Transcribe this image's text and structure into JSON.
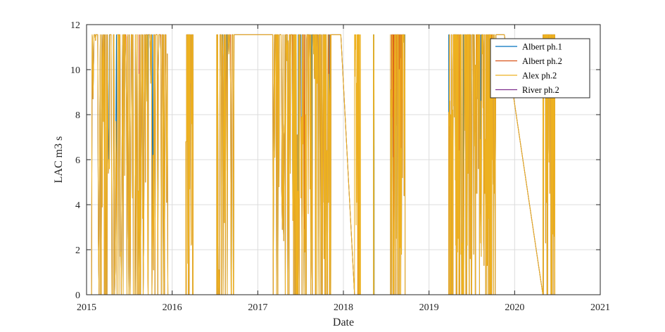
{
  "chart_data": {
    "type": "line",
    "xlabel": "Date",
    "ylabel": "LAC m3 s",
    "xlim": [
      2015,
      2021
    ],
    "ylim": [
      0,
      12
    ],
    "x_ticks": [
      "2015",
      "2016",
      "2017",
      "2018",
      "2019",
      "2020",
      "2021"
    ],
    "y_ticks": [
      "0",
      "2",
      "4",
      "6",
      "8",
      "10",
      "12"
    ],
    "grid": true,
    "legend_position": "top-right",
    "cap_value": 11.55,
    "series": [
      {
        "name": "Albert ph.1",
        "color": "#0072BD",
        "segments": [
          {
            "start": 2015.05,
            "end": 2015.95
          },
          {
            "start": 2016.16,
            "end": 2016.25
          },
          {
            "start": 2016.52,
            "end": 2017.35
          },
          {
            "start": 2017.35,
            "end": 2017.97
          },
          {
            "start": 2018.17,
            "end": 2018.18
          },
          {
            "start": 2018.35,
            "end": 2018.36
          },
          {
            "start": 2018.55,
            "end": 2018.72
          },
          {
            "start": 2019.23,
            "end": 2019.47
          },
          {
            "start": 2019.47,
            "end": 2019.88
          },
          {
            "start": 2020.33,
            "end": 2020.47
          }
        ]
      },
      {
        "name": "Albert ph.2",
        "color": "#D95319",
        "segments": [
          {
            "start": 2015.05,
            "end": 2015.95
          },
          {
            "start": 2016.16,
            "end": 2016.25
          },
          {
            "start": 2016.52,
            "end": 2017.35
          },
          {
            "start": 2017.35,
            "end": 2017.97
          },
          {
            "start": 2018.17,
            "end": 2018.18
          },
          {
            "start": 2018.55,
            "end": 2018.72
          },
          {
            "start": 2019.23,
            "end": 2019.47
          },
          {
            "start": 2019.47,
            "end": 2019.88
          },
          {
            "start": 2020.33,
            "end": 2020.47
          }
        ]
      },
      {
        "name": "Alex ph.2",
        "color": "#EDB120",
        "segments": [
          {
            "start": 2015.05,
            "end": 2015.95
          },
          {
            "start": 2016.16,
            "end": 2016.25
          },
          {
            "start": 2016.52,
            "end": 2017.35
          },
          {
            "start": 2017.35,
            "end": 2017.97
          },
          {
            "start": 2018.13,
            "end": 2018.2
          },
          {
            "start": 2018.35,
            "end": 2018.36
          },
          {
            "start": 2018.55,
            "end": 2018.72
          },
          {
            "start": 2019.23,
            "end": 2019.47
          },
          {
            "start": 2019.47,
            "end": 2019.88
          },
          {
            "start": 2020.33,
            "end": 2020.47
          }
        ]
      },
      {
        "name": "River ph.2",
        "color": "#7E2F8E",
        "segments": []
      }
    ],
    "plateaus": [
      {
        "start": 2016.72,
        "end": 2017.18,
        "value": 11.55
      },
      {
        "start": 2017.86,
        "end": 2017.98,
        "value": 11.55
      },
      {
        "start": 2019.78,
        "end": 2019.88,
        "value": 11.55
      }
    ]
  }
}
